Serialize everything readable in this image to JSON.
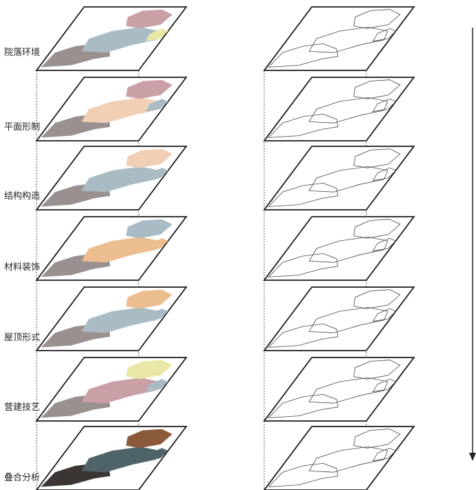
{
  "layers": [
    {
      "label": "院落环境"
    },
    {
      "label": "平面形制"
    },
    {
      "label": "结构构造"
    },
    {
      "label": "材料装饰"
    },
    {
      "label": "屋顶形式"
    },
    {
      "label": "营建技艺"
    },
    {
      "label": "叠合分析"
    }
  ],
  "arrow_icon": "down-arrow",
  "colors": {
    "frame": "#1a1a1a",
    "guide": "#555555",
    "pink": "#c9a0a6",
    "yellow": "#e9e7a6",
    "blue_gray": "#a9bcc6",
    "gray": "#9a9090",
    "peach": "#f1cfb4",
    "orange": "#ecbd8f",
    "dark": "#3b3533",
    "brown": "#8a5a3a",
    "slate": "#4f6469"
  }
}
